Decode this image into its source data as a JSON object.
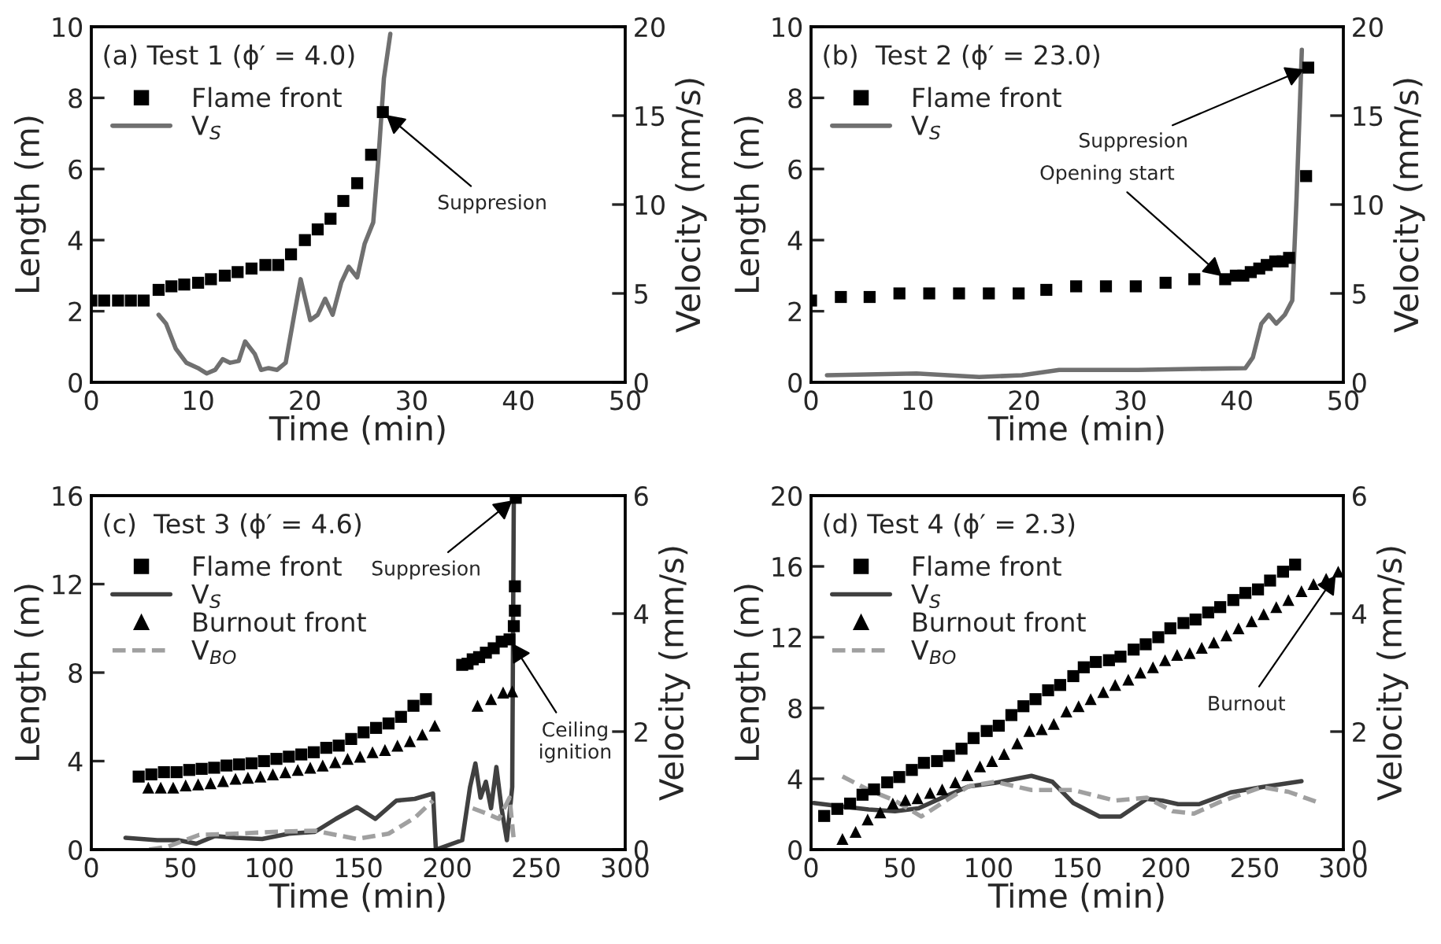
{
  "chart_data": [
    {
      "type": "scatter",
      "xlabel": "Time (min)",
      "ylabel": "Length (m)",
      "y2label": "Velocity (mm/s)",
      "xlim": [
        0,
        50
      ],
      "xticks": [
        0,
        10,
        20,
        30,
        40,
        50
      ],
      "ylim": [
        0,
        10
      ],
      "yticks": [
        0,
        2,
        4,
        6,
        8,
        10
      ],
      "y2lim": [
        0,
        20
      ],
      "y2ticks": [
        0,
        5,
        10,
        15,
        20
      ],
      "legend": "top left",
      "grid": false,
      "annotations": [
        "(a) Test 1 (ϕ′ = 4.0)",
        {
          "text": "Suppresion",
          "x": 27.3,
          "y": 7.6
        }
      ],
      "series": [
        {
          "name": "Flame front",
          "marker": "square",
          "color": "#000000",
          "x": [
            0,
            1.2,
            2.5,
            3.7,
            4.9,
            6.3,
            7.5,
            8.7,
            10,
            11.2,
            12.5,
            13.7,
            15,
            16.3,
            17.5,
            18.7,
            20,
            21.2,
            22.4,
            23.6,
            24.9,
            26.2,
            27.3
          ],
          "values": [
            2.3,
            2.3,
            2.3,
            2.3,
            2.3,
            2.6,
            2.7,
            2.75,
            2.8,
            2.9,
            3.0,
            3.1,
            3.2,
            3.3,
            3.3,
            3.6,
            4.0,
            4.3,
            4.6,
            5.1,
            5.6,
            6.4,
            7.6
          ]
        },
        {
          "name": "V$_{S}$",
          "type": "line",
          "axis": "y2",
          "line_style": "solid",
          "color": "#707070",
          "x": [
            6.3,
            7,
            7.9,
            8.9,
            10,
            10.8,
            11.6,
            12.3,
            13,
            13.8,
            14.4,
            15.3,
            15.9,
            16.6,
            17.4,
            18.2,
            19,
            19.6,
            20.5,
            21.2,
            21.9,
            22.6,
            23.4,
            24.1,
            24.9,
            25.6,
            26.4,
            26.9,
            27.4,
            28
          ],
          "values": [
            3.8,
            3.3,
            1.9,
            1.1,
            0.8,
            0.5,
            0.7,
            1.3,
            1.1,
            1.2,
            2.3,
            1.6,
            0.7,
            0.8,
            0.7,
            1.1,
            3.8,
            5.8,
            3.5,
            3.8,
            4.7,
            3.8,
            5.6,
            6.5,
            5.9,
            7.8,
            9,
            12.7,
            17.1,
            19.6
          ]
        }
      ]
    },
    {
      "type": "scatter",
      "xlabel": "Time (min)",
      "ylabel": "Length (m)",
      "y2label": "Velocity (mm/s)",
      "xlim": [
        0,
        50
      ],
      "xticks": [
        0,
        10,
        20,
        30,
        40,
        50
      ],
      "ylim": [
        0,
        10
      ],
      "yticks": [
        0,
        2,
        4,
        6,
        8,
        10
      ],
      "y2lim": [
        0,
        20
      ],
      "y2ticks": [
        0,
        5,
        10,
        15,
        20
      ],
      "legend": "top left",
      "grid": false,
      "annotations": [
        "(b)  Test 2 (ϕ′ = 23.0)",
        {
          "text": "Suppresion",
          "x": 46.7,
          "y": 8.85
        },
        {
          "text": "Opening start",
          "x": 38.9,
          "y": 2.9
        }
      ],
      "series": [
        {
          "name": "Flame front",
          "marker": "square",
          "color": "#000000",
          "x": [
            0,
            2.8,
            5.5,
            8.3,
            11.1,
            13.9,
            16.7,
            19.5,
            22.1,
            24.9,
            27.7,
            30.5,
            33.3,
            36,
            38.9,
            39.9,
            40.6,
            41.3,
            42.1,
            42.8,
            43.6,
            44.3,
            44.9,
            46.5,
            46.7
          ],
          "values": [
            2.3,
            2.4,
            2.4,
            2.5,
            2.5,
            2.5,
            2.5,
            2.5,
            2.6,
            2.7,
            2.7,
            2.7,
            2.8,
            2.9,
            2.9,
            3.0,
            3.0,
            3.1,
            3.2,
            3.3,
            3.4,
            3.4,
            3.5,
            5.8,
            8.85
          ]
        },
        {
          "name": "V$_{S}$",
          "type": "line",
          "axis": "y2",
          "line_style": "solid",
          "color": "#707070",
          "x": [
            1.5,
            9.9,
            15.8,
            19.8,
            23.3,
            30.7,
            40.8,
            41.5,
            42.3,
            43,
            43.7,
            44.5,
            45.2,
            45.6,
            46.1
          ],
          "values": [
            0.4,
            0.5,
            0.3,
            0.4,
            0.7,
            0.7,
            0.8,
            1.4,
            3.3,
            3.8,
            3.3,
            3.8,
            4.6,
            10.3,
            18.7
          ]
        }
      ]
    },
    {
      "type": "scatter",
      "xlabel": "Time (min)",
      "ylabel": "Length (m)",
      "y2label": "Velocity (mm/s)",
      "xlim": [
        0,
        300
      ],
      "xticks": [
        0,
        50,
        100,
        150,
        200,
        250,
        300
      ],
      "ylim": [
        0,
        16
      ],
      "yticks": [
        0,
        4,
        8,
        12,
        16
      ],
      "y2lim": [
        0,
        6
      ],
      "y2ticks": [
        0,
        2,
        4,
        6
      ],
      "legend": "top left",
      "grid": false,
      "annotations": [
        "(c)  Test 3 (ϕ′ = 4.6)",
        {
          "text": "Suppresion",
          "x": 238.5,
          "y": 15.9
        },
        {
          "text": "Ceiling\nignition",
          "x": 235,
          "y": 9.5
        }
      ],
      "series": [
        {
          "name": "Flame front",
          "marker": "square",
          "color": "#000000",
          "x": [
            26.6,
            33.7,
            40.8,
            47.9,
            55,
            62,
            69,
            76,
            83,
            90,
            97,
            104,
            111,
            118,
            125,
            132,
            139,
            146,
            153,
            160,
            167,
            174,
            181,
            188,
            208.4,
            211.4,
            214.3,
            217.9,
            221.7,
            226.1,
            230.6,
            235,
            237.4,
            238,
            238,
            238.5
          ],
          "values": [
            3.3,
            3.4,
            3.5,
            3.5,
            3.6,
            3.65,
            3.7,
            3.8,
            3.85,
            3.9,
            4.0,
            4.1,
            4.2,
            4.3,
            4.4,
            4.6,
            4.7,
            5.0,
            5.3,
            5.5,
            5.7,
            6.0,
            6.5,
            6.8,
            8.35,
            8.4,
            8.6,
            8.7,
            8.9,
            9.1,
            9.4,
            9.5,
            10.1,
            10.8,
            11.9,
            15.9
          ]
        },
        {
          "name": "V$_{S}$",
          "type": "line",
          "axis": "y2",
          "line_style": "solid",
          "color": "#404040",
          "x": [
            19.2,
            37,
            48.8,
            59,
            69.5,
            81,
            96,
            111,
            125.6,
            137.4,
            149.3,
            159.6,
            171.4,
            181.8,
            192,
            193.6,
            208.4,
            212.8,
            215.8,
            218.7,
            221.7,
            224.6,
            227.6,
            230.5,
            233.5,
            236.5,
            237.4
          ],
          "values": [
            0.2,
            0.16,
            0.16,
            0.1,
            0.23,
            0.2,
            0.18,
            0.27,
            0.3,
            0.52,
            0.72,
            0.52,
            0.83,
            0.86,
            0.95,
            0,
            0.16,
            1.06,
            1.46,
            0.88,
            1.15,
            0.7,
            1.4,
            0.7,
            0.16,
            1.06,
            6.0
          ]
        },
        {
          "name": "Burnout front",
          "marker": "triangle",
          "color": "#000000",
          "x": [
            32,
            39,
            46,
            53,
            60,
            67,
            74,
            81,
            88,
            95,
            102,
            109,
            116,
            123,
            130,
            137,
            144,
            151,
            158,
            165,
            172,
            179,
            186,
            193,
            217,
            224.6,
            231.4,
            236.5
          ],
          "values": [
            2.8,
            2.8,
            2.8,
            2.9,
            2.95,
            3.0,
            3.1,
            3.2,
            3.25,
            3.3,
            3.4,
            3.5,
            3.6,
            3.7,
            3.8,
            3.95,
            4.1,
            4.2,
            4.4,
            4.5,
            4.7,
            4.9,
            5.2,
            5.6,
            6.5,
            6.8,
            7.1,
            7.15
          ]
        },
        {
          "name": "V$_{BO}$",
          "type": "line",
          "axis": "y2",
          "line_style": "dashed",
          "color": "#a0a0a0",
          "x": [
            32.5,
            43,
            60.6,
            81,
            102,
            125.6,
            149.3,
            167,
            181.8,
            192,
            null,
            214.3,
            223,
            229,
            235,
            237.4
          ],
          "values": [
            0,
            0.05,
            0.25,
            0.27,
            0.3,
            0.32,
            0.18,
            0.27,
            0.54,
            0.83,
            null,
            0.7,
            0.6,
            0.52,
            0.88,
            0.16
          ]
        }
      ]
    },
    {
      "type": "scatter",
      "xlabel": "Time (min)",
      "ylabel": "Length (m)",
      "y2label": "Velocity (mm/s)",
      "xlim": [
        0,
        300
      ],
      "xticks": [
        0,
        50,
        100,
        150,
        200,
        250,
        300
      ],
      "ylim": [
        0,
        20
      ],
      "yticks": [
        0,
        4,
        8,
        12,
        16,
        20
      ],
      "y2lim": [
        0,
        6
      ],
      "y2ticks": [
        0,
        2,
        4,
        6
      ],
      "legend": "top left",
      "grid": false,
      "annotations": [
        "(d) Test 4 (ϕ′ = 2.3)",
        {
          "text": "Burnout",
          "x": 297.1,
          "y": 15.7
        }
      ],
      "series": [
        {
          "name": "Flame front",
          "marker": "square",
          "color": "#000000",
          "x": [
            7.4,
            14.8,
            22,
            29,
            35.5,
            42.9,
            49.7,
            56.8,
            63.6,
            71,
            77.7,
            84.8,
            91.6,
            99,
            105.8,
            112.9,
            119.7,
            126.5,
            133.6,
            140.4,
            147.8,
            153.7,
            160.5,
            167.9,
            174.4,
            181.8,
            188.6,
            195.7,
            202.5,
            209.9,
            216.7,
            223.8,
            230.6,
            238,
            244.8,
            251.9,
            258.7,
            266,
            272.8
          ],
          "values": [
            1.9,
            2.3,
            2.6,
            3.1,
            3.4,
            3.8,
            4.1,
            4.5,
            4.9,
            5.0,
            5.3,
            5.7,
            6.3,
            6.7,
            7.0,
            7.6,
            8.1,
            8.5,
            9.0,
            9.3,
            9.8,
            10.3,
            10.6,
            10.7,
            10.9,
            11.3,
            11.6,
            12.0,
            12.5,
            12.8,
            13.0,
            13.4,
            13.7,
            14.1,
            14.5,
            14.7,
            15.2,
            15.7,
            16.1
          ]
        },
        {
          "name": "V$_{S}$",
          "type": "line",
          "axis": "y2",
          "line_style": "solid",
          "color": "#404040",
          "x": [
            1.5,
            14.8,
            32.5,
            47.3,
            60.6,
            73.9,
            88.7,
            103.5,
            124.2,
            136,
            147.8,
            162.6,
            174.4,
            189.2,
            198,
            206.9,
            218.7,
            236.5,
            254.2,
            276.4
          ],
          "values": [
            0.79,
            0.74,
            0.68,
            0.65,
            0.7,
            0.88,
            1.07,
            1.13,
            1.25,
            1.15,
            0.79,
            0.56,
            0.56,
            0.86,
            0.83,
            0.77,
            0.77,
            0.97,
            1.06,
            1.16
          ]
        },
        {
          "name": "Burnout front",
          "marker": "triangle",
          "color": "#000000",
          "x": [
            17.7,
            25.1,
            31.9,
            39,
            46.1,
            53.2,
            60,
            67.1,
            73.9,
            81.3,
            88.1,
            95.2,
            102,
            108.8,
            116.2,
            123,
            130,
            136.8,
            143.9,
            150.8,
            157.6,
            164.7,
            171.4,
            178.8,
            185.6,
            192.7,
            199.5,
            206.3,
            213.4,
            220.2,
            227,
            234.1,
            240.9,
            248.3,
            255.1,
            262.2,
            269,
            276.4,
            283.2,
            290.3,
            297.1
          ],
          "values": [
            0.6,
            1.0,
            1.7,
            2.1,
            2.6,
            2.8,
            2.9,
            3.2,
            3.4,
            3.8,
            4.2,
            4.7,
            5.0,
            5.4,
            6.0,
            6.7,
            6.8,
            7.1,
            7.8,
            8.1,
            8.5,
            8.9,
            9.3,
            9.6,
            10.0,
            10.3,
            10.7,
            11.0,
            11.1,
            11.4,
            11.7,
            12.1,
            12.5,
            12.9,
            13.3,
            13.7,
            14.1,
            14.6,
            15.0,
            15.3,
            15.7
          ]
        },
        {
          "name": "V$_{BO}$",
          "type": "line",
          "axis": "y2",
          "line_style": "dashed",
          "color": "#a0a0a0",
          "x": [
            17.7,
            32.5,
            47.3,
            62.1,
            73.9,
            88.7,
            103.5,
            124.2,
            147.8,
            171.4,
            189.2,
            203.9,
            215.8,
            230.6,
            254.2,
            269,
            286.7
          ],
          "values": [
            1.24,
            1.01,
            0.83,
            0.56,
            0.79,
            1.07,
            1.15,
            1.01,
            1.01,
            0.83,
            0.88,
            0.65,
            0.61,
            0.81,
            1.06,
            0.98,
            0.79
          ]
        }
      ]
    }
  ]
}
